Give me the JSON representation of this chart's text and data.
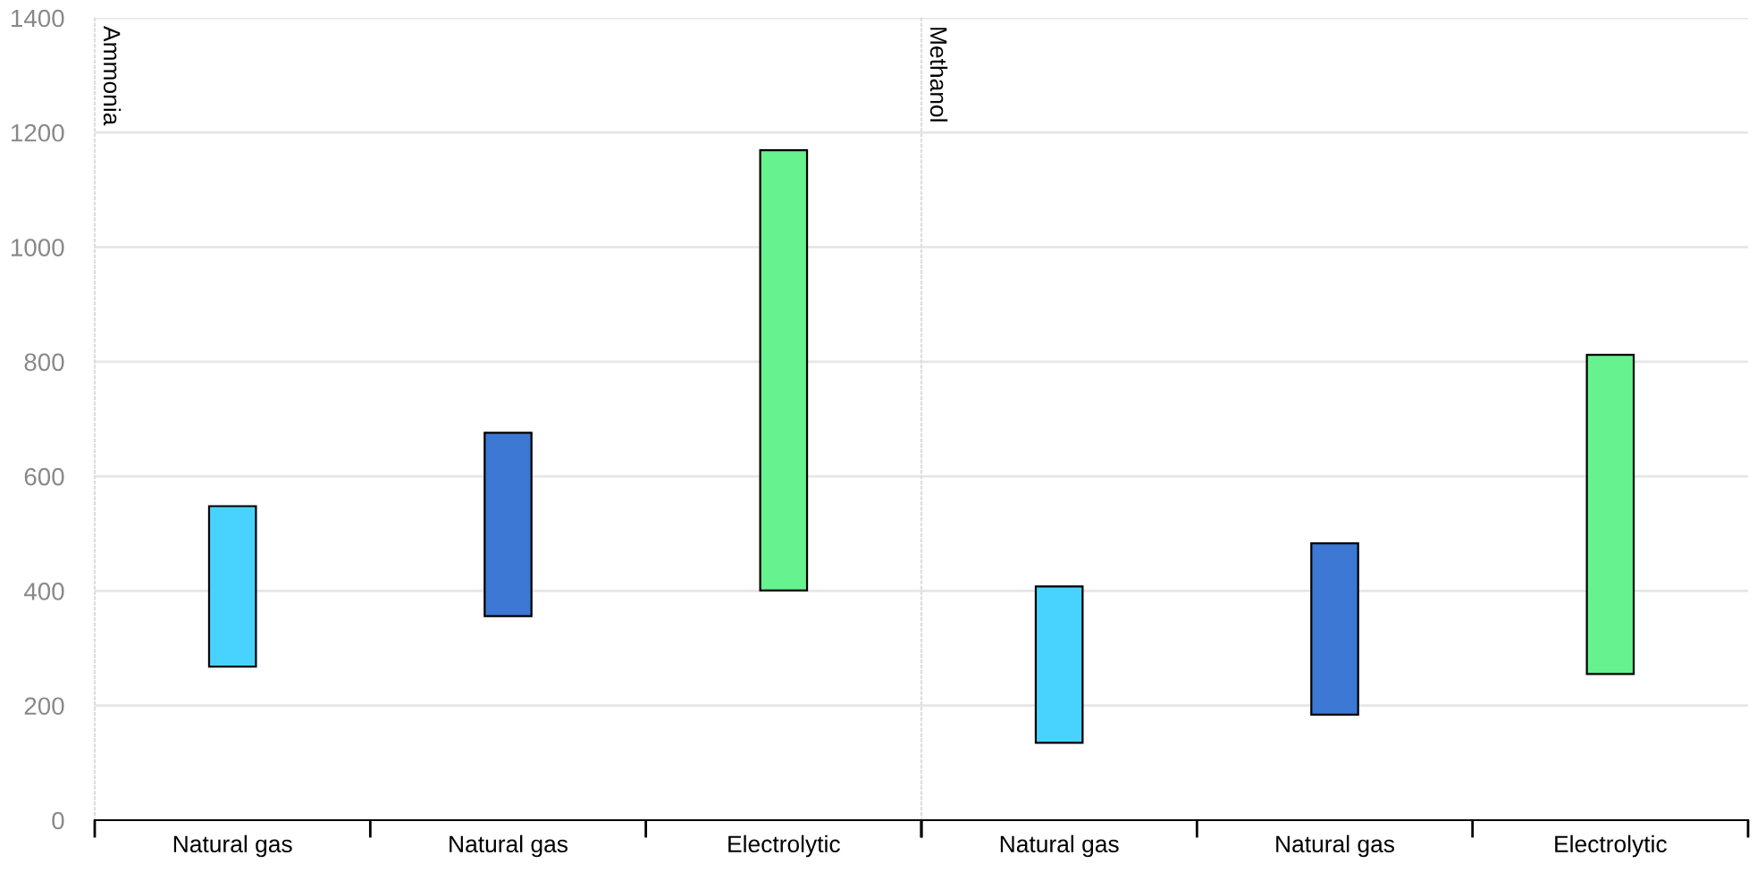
{
  "chart_data": [
    {
      "type": "bar",
      "title": "Ammonia",
      "categories": [
        "Natural gas",
        "Natural gas",
        "Electrolytic"
      ],
      "base": [
        268,
        356,
        401
      ],
      "values": [
        280,
        320,
        768
      ],
      "colors": [
        "#48d3ff",
        "#3c78d4",
        "#66f28f"
      ],
      "ylim": [
        0,
        1400
      ],
      "yticks": [
        0,
        200,
        400,
        600,
        800,
        1000,
        1200,
        1400
      ],
      "grid": "y"
    },
    {
      "type": "bar",
      "title": "Methanol",
      "categories": [
        "Natural gas",
        "Natural gas",
        "Electrolytic"
      ],
      "base": [
        135,
        184,
        255
      ],
      "values": [
        273,
        299,
        557
      ],
      "colors": [
        "#48d3ff",
        "#3c78d4",
        "#66f28f"
      ],
      "ylim": [
        0,
        1400
      ],
      "tick_labels": "x",
      "grid": "y"
    }
  ]
}
